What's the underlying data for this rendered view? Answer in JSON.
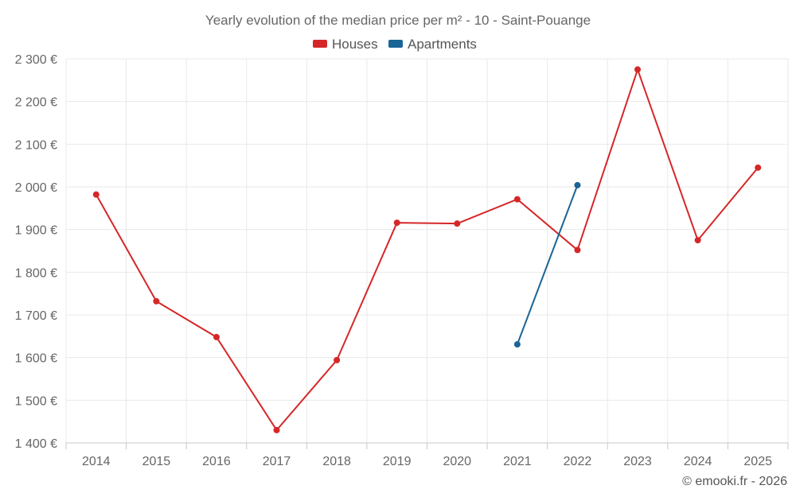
{
  "chart_data": {
    "type": "line",
    "title": "Yearly evolution of the median price per m² - 10 - Saint-Pouange",
    "xlabel": "",
    "ylabel": "",
    "categories": [
      "2014",
      "2015",
      "2016",
      "2017",
      "2018",
      "2019",
      "2020",
      "2021",
      "2022",
      "2023",
      "2024",
      "2025"
    ],
    "ylim": [
      1400,
      2300
    ],
    "yticks": [
      1400,
      1500,
      1600,
      1700,
      1800,
      1900,
      2000,
      2100,
      2200,
      2300
    ],
    "ytick_labels": [
      "1 400 €",
      "1 500 €",
      "1 600 €",
      "1 700 €",
      "1 800 €",
      "1 900 €",
      "2 000 €",
      "2 100 €",
      "2 200 €",
      "2 300 €"
    ],
    "grid": true,
    "legend_position": "top-center",
    "series": [
      {
        "name": "Houses",
        "color": "#d62728",
        "values": [
          1982,
          1732,
          1648,
          1430,
          1594,
          1916,
          1914,
          1971,
          1852,
          2275,
          1875,
          2045
        ]
      },
      {
        "name": "Apartments",
        "color": "#1a6496",
        "values": [
          null,
          null,
          null,
          null,
          null,
          null,
          null,
          1631,
          2004,
          null,
          null,
          null
        ]
      }
    ]
  },
  "credit": "© emooki.fr - 2026"
}
